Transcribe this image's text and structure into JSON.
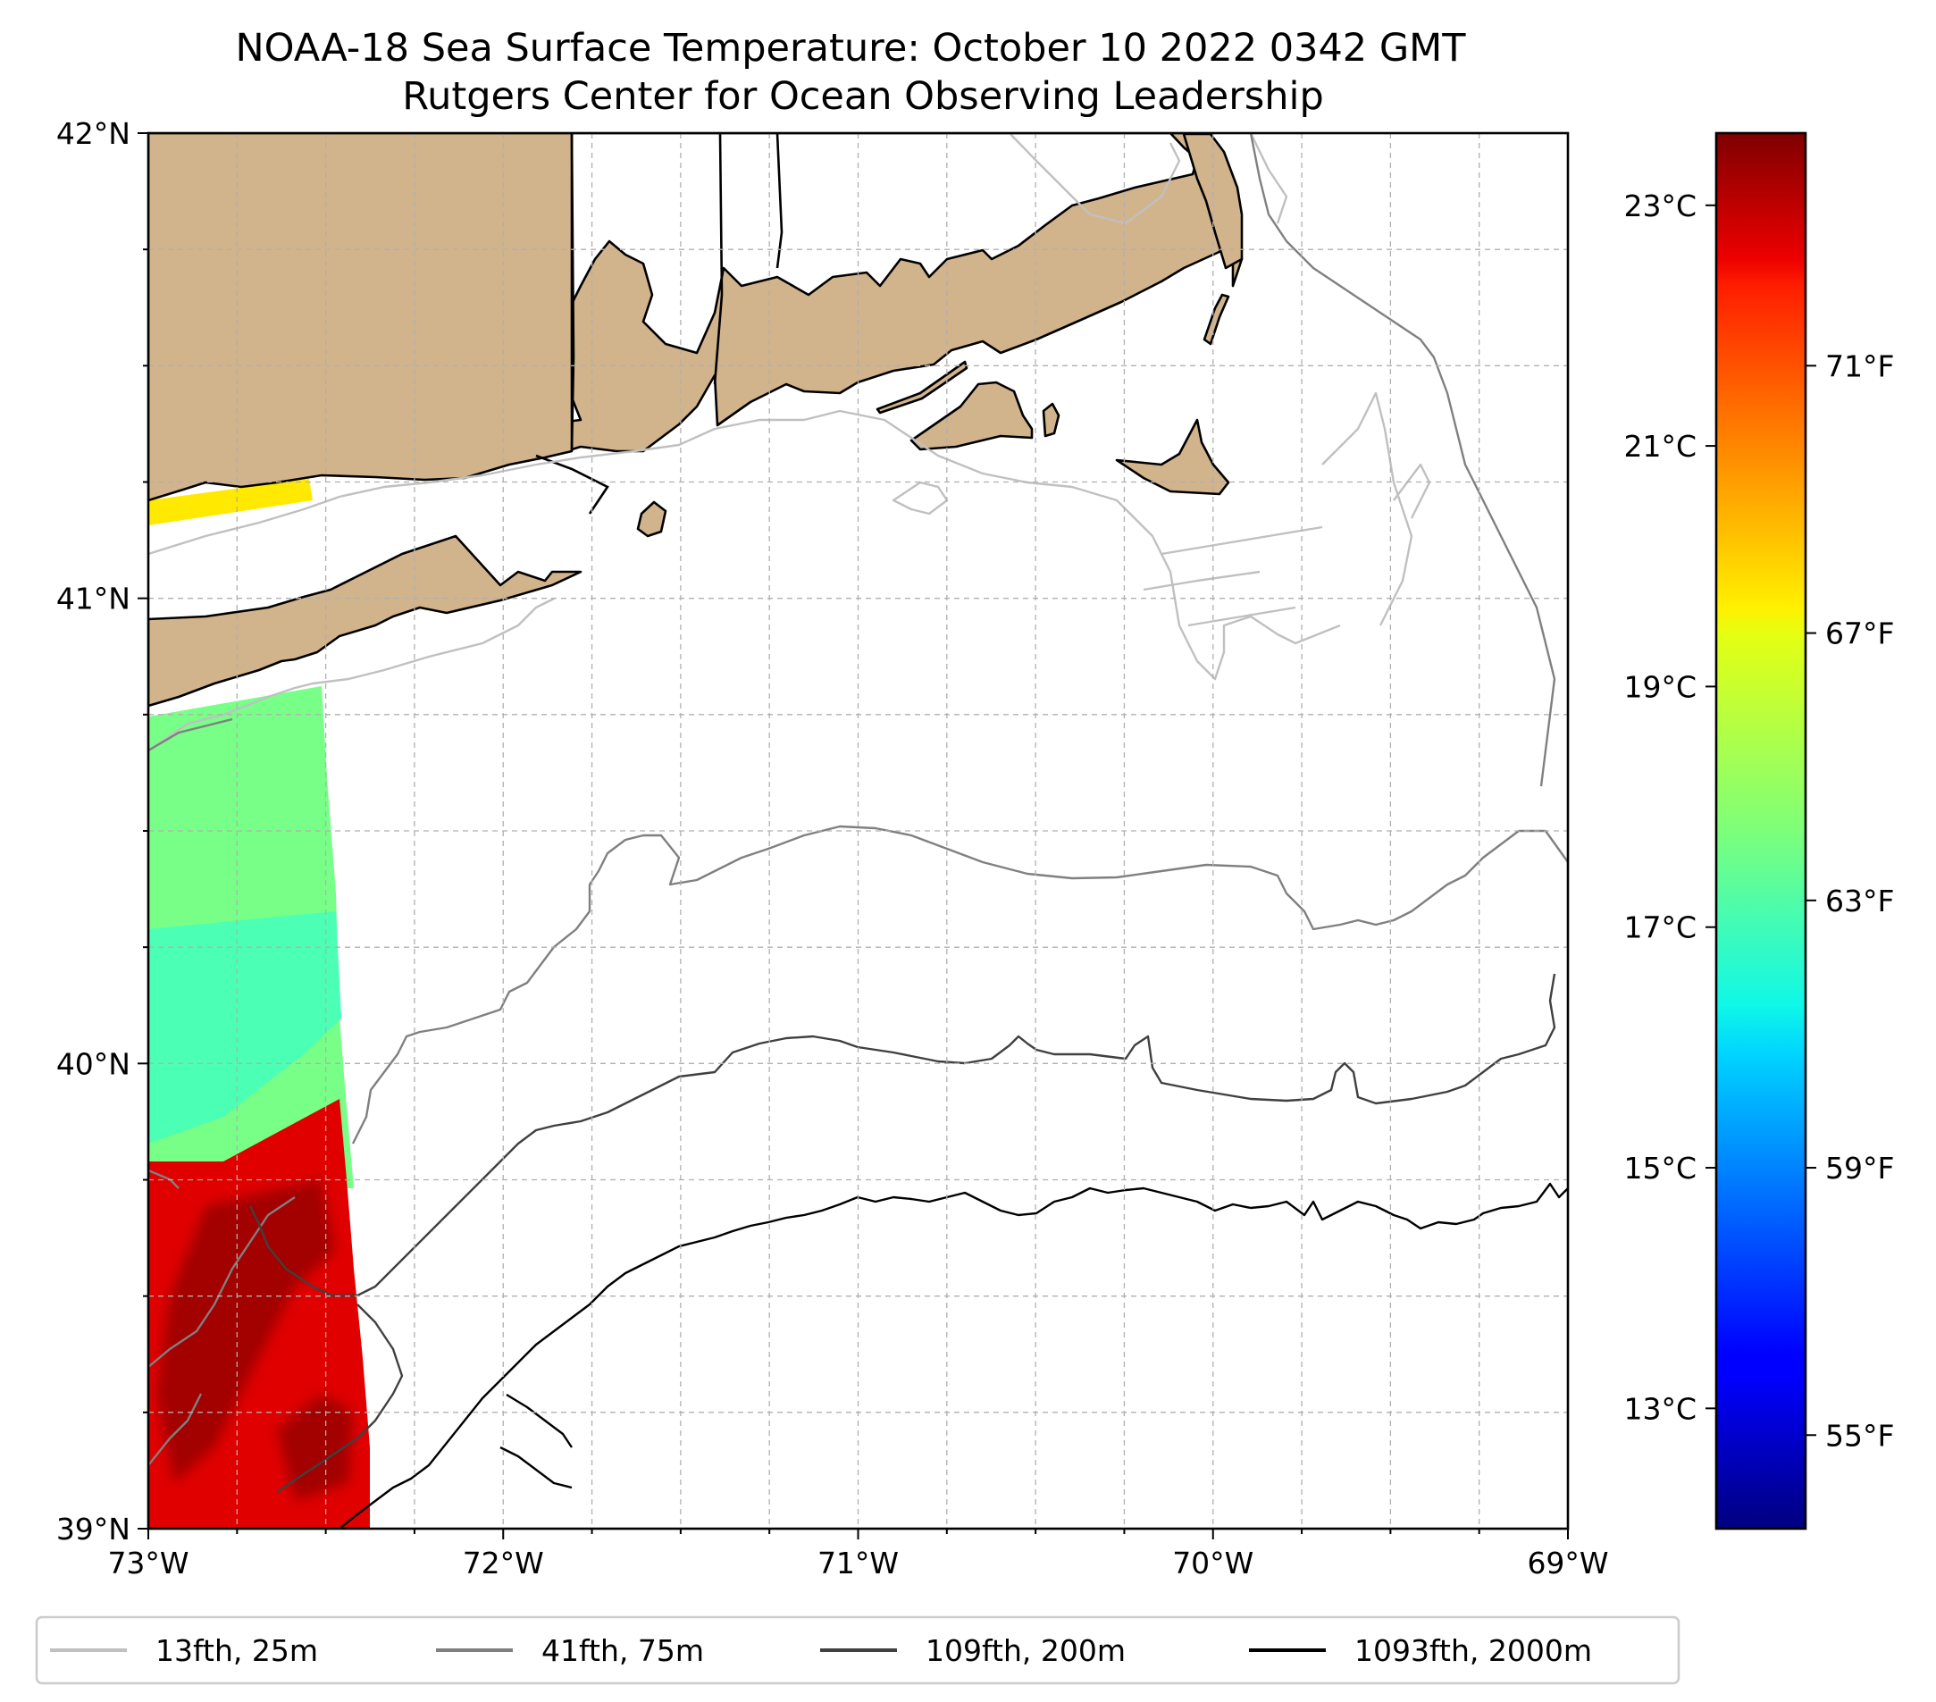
{
  "title": {
    "line1": "NOAA-18 Sea Surface Temperature: October 10 2022 0342 GMT",
    "line2": "Rutgers Center for Ocean Observing Leadership"
  },
  "colors": {
    "land": "#d2b48c",
    "coast": "#000000",
    "grid": "#b0b0b0",
    "iso_13": "#c0c0c0",
    "iso_41": "#808080",
    "iso_109": "#404040",
    "iso_1093": "#000000"
  },
  "chart_data": {
    "type": "heatmap",
    "variable": "sea surface temperature",
    "lon_range": [
      -73,
      -69
    ],
    "lat_range": [
      39,
      42
    ],
    "x_ticks": [
      {
        "value": -73,
        "label": "73°W"
      },
      {
        "value": -72,
        "label": "72°W"
      },
      {
        "value": -71,
        "label": "71°W"
      },
      {
        "value": -70,
        "label": "70°W"
      },
      {
        "value": -69,
        "label": "69°W"
      }
    ],
    "y_ticks": [
      {
        "value": 39,
        "label": "39°N"
      },
      {
        "value": 40,
        "label": "40°N"
      },
      {
        "value": 41,
        "label": "41°N"
      },
      {
        "value": 42,
        "label": "42°N"
      }
    ],
    "colorbar": {
      "cmap": "jet",
      "range_c": [
        12.0,
        23.6
      ],
      "celsius_ticks": [
        {
          "value": 13,
          "label": "13°C"
        },
        {
          "value": 15,
          "label": "15°C"
        },
        {
          "value": 17,
          "label": "17°C"
        },
        {
          "value": 19,
          "label": "19°C"
        },
        {
          "value": 21,
          "label": "21°C"
        },
        {
          "value": 23,
          "label": "23°C"
        }
      ],
      "fahrenheit_ticks": [
        {
          "value": 55,
          "label": "55°F"
        },
        {
          "value": 59,
          "label": "59°F"
        },
        {
          "value": 63,
          "label": "63°F"
        },
        {
          "value": 67,
          "label": "67°F"
        },
        {
          "value": 71,
          "label": "71°F"
        }
      ]
    },
    "sst_regions": [
      {
        "name": "long-island-sound-strip",
        "temp_c": 19.5
      },
      {
        "name": "inner-shelf-band",
        "temp_c": 17.7
      },
      {
        "name": "mid-shelf-band",
        "temp_c": 17.2
      },
      {
        "name": "warm-slope-water",
        "temp_c": 22.5
      },
      {
        "name": "warm-core-center",
        "temp_c": 23.2
      }
    ],
    "legend": [
      {
        "label": "13fth, 25m",
        "color_key": "iso_13"
      },
      {
        "label": "41fth, 75m",
        "color_key": "iso_41"
      },
      {
        "label": "109fth, 200m",
        "color_key": "iso_109"
      },
      {
        "label": "1093fth, 2000m",
        "color_key": "iso_1093"
      }
    ]
  }
}
